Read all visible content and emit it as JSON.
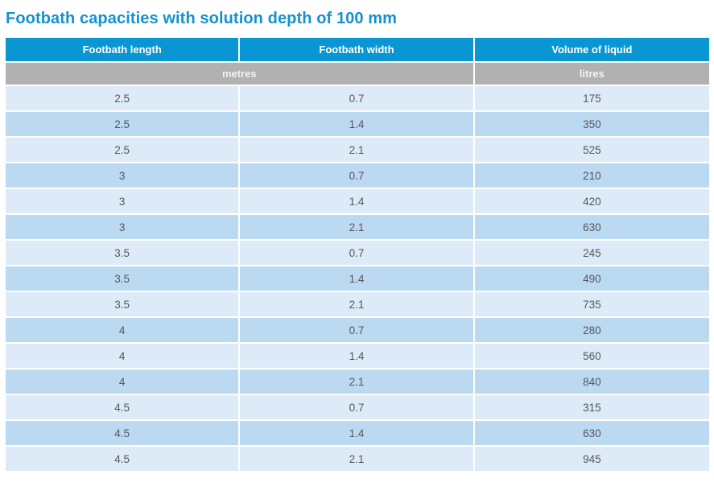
{
  "title": "Footbath capacities with solution depth of 100 mm",
  "table": {
    "columns": [
      "Footbath length",
      "Footbath width",
      "Volume of liquid"
    ],
    "units": {
      "dimensions": "metres",
      "volume": "litres"
    },
    "rows": [
      [
        "2.5",
        "0.7",
        "175"
      ],
      [
        "2.5",
        "1.4",
        "350"
      ],
      [
        "2.5",
        "2.1",
        "525"
      ],
      [
        "3",
        "0.7",
        "210"
      ],
      [
        "3",
        "1.4",
        "420"
      ],
      [
        "3",
        "2.1",
        "630"
      ],
      [
        "3.5",
        "0.7",
        "245"
      ],
      [
        "3.5",
        "1.4",
        "490"
      ],
      [
        "3.5",
        "2.1",
        "735"
      ],
      [
        "4",
        "0.7",
        "280"
      ],
      [
        "4",
        "1.4",
        "560"
      ],
      [
        "4",
        "2.1",
        "840"
      ],
      [
        "4.5",
        "0.7",
        "315"
      ],
      [
        "4.5",
        "1.4",
        "630"
      ],
      [
        "4.5",
        "2.1",
        "945"
      ]
    ]
  },
  "colors": {
    "title_text": "#1591ce",
    "header_bg": "#0a95d3",
    "header_text": "#ffffff",
    "units_bg": "#b1b1b1",
    "row_light": "#ddebf8",
    "row_dark": "#bcd9f2",
    "cell_text": "#55565a"
  }
}
